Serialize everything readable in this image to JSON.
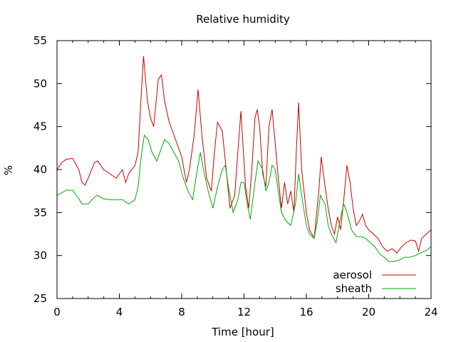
{
  "chart_data": {
    "type": "line",
    "title": "Relative humidity",
    "xlabel": "Time [hour]",
    "ylabel": "%",
    "xlim": [
      0,
      24
    ],
    "ylim": [
      25,
      55
    ],
    "xticks": [
      0,
      4,
      8,
      12,
      16,
      20,
      24
    ],
    "yticks": [
      25,
      30,
      35,
      40,
      45,
      50,
      55
    ],
    "grid": false,
    "legend": "bottom-right",
    "series": [
      {
        "name": "aerosol",
        "color": "#cc0000",
        "x": [
          0.0,
          0.3,
          0.6,
          1.0,
          1.4,
          1.6,
          1.8,
          2.0,
          2.4,
          2.6,
          3.0,
          3.4,
          3.8,
          4.2,
          4.4,
          4.6,
          5.0,
          5.2,
          5.4,
          5.55,
          5.8,
          6.0,
          6.2,
          6.5,
          6.7,
          6.9,
          7.2,
          7.5,
          7.8,
          8.0,
          8.3,
          8.5,
          8.8,
          9.05,
          9.3,
          9.6,
          9.9,
          10.1,
          10.3,
          10.6,
          10.8,
          11.1,
          11.4,
          11.6,
          11.8,
          12.1,
          12.3,
          12.5,
          12.7,
          12.85,
          13.0,
          13.2,
          13.4,
          13.6,
          13.8,
          14.0,
          14.2,
          14.4,
          14.6,
          14.8,
          15.0,
          15.2,
          15.35,
          15.5,
          15.7,
          16.0,
          16.2,
          16.5,
          16.8,
          16.95,
          17.2,
          17.4,
          17.6,
          17.8,
          18.0,
          18.2,
          18.4,
          18.6,
          18.8,
          19.0,
          19.2,
          19.4,
          19.6,
          19.8,
          20.0,
          20.3,
          20.6,
          20.9,
          21.2,
          21.5,
          21.8,
          22.1,
          22.4,
          22.7,
          23.0,
          23.2,
          23.4,
          23.7,
          24.0
        ],
        "y": [
          40.0,
          40.8,
          41.2,
          41.3,
          40.0,
          38.5,
          38.2,
          39.0,
          40.8,
          41.0,
          40.0,
          39.5,
          39.0,
          40.0,
          38.5,
          39.5,
          40.5,
          42.0,
          48.5,
          53.2,
          48.0,
          46.0,
          45.0,
          50.5,
          51.0,
          48.0,
          45.5,
          44.0,
          42.5,
          41.5,
          38.5,
          40.0,
          44.0,
          49.3,
          44.0,
          39.0,
          37.5,
          42.0,
          45.5,
          44.5,
          41.0,
          35.5,
          37.0,
          42.0,
          46.8,
          38.0,
          35.5,
          40.0,
          46.0,
          47.0,
          45.0,
          39.5,
          38.0,
          45.0,
          47.0,
          43.0,
          39.0,
          35.5,
          38.5,
          36.0,
          37.5,
          35.0,
          42.0,
          47.8,
          40.0,
          35.0,
          33.0,
          32.0,
          37.5,
          41.5,
          38.0,
          35.5,
          33.5,
          32.5,
          34.5,
          33.0,
          36.5,
          40.5,
          38.5,
          35.5,
          33.5,
          34.0,
          34.8,
          33.5,
          33.0,
          32.5,
          32.0,
          31.0,
          30.5,
          30.8,
          30.3,
          31.0,
          31.5,
          31.8,
          31.7,
          30.5,
          32.0,
          32.5,
          33.0
        ]
      },
      {
        "name": "sheath",
        "color": "#00aa00",
        "x": [
          0.0,
          0.3,
          0.6,
          1.0,
          1.4,
          1.6,
          2.0,
          2.4,
          2.6,
          3.0,
          3.4,
          3.8,
          4.2,
          4.6,
          5.0,
          5.2,
          5.4,
          5.6,
          5.85,
          6.1,
          6.4,
          6.6,
          6.9,
          7.2,
          7.5,
          7.8,
          8.1,
          8.4,
          8.7,
          9.0,
          9.2,
          9.4,
          9.7,
          10.0,
          10.3,
          10.6,
          10.8,
          11.0,
          11.3,
          11.6,
          11.8,
          12.0,
          12.2,
          12.4,
          12.7,
          12.9,
          13.2,
          13.4,
          13.6,
          13.8,
          14.0,
          14.2,
          14.4,
          14.7,
          15.0,
          15.3,
          15.5,
          15.7,
          16.0,
          16.2,
          16.5,
          16.7,
          16.9,
          17.2,
          17.4,
          17.6,
          17.9,
          18.2,
          18.4,
          18.6,
          18.9,
          19.2,
          19.5,
          19.8,
          20.1,
          20.4,
          20.7,
          21.0,
          21.3,
          21.6,
          22.0,
          22.3,
          22.6,
          23.0,
          23.3,
          23.6,
          24.0
        ],
        "y": [
          37.0,
          37.3,
          37.6,
          37.6,
          36.6,
          36.0,
          36.0,
          36.8,
          37.0,
          36.6,
          36.5,
          36.5,
          36.5,
          36.0,
          36.5,
          38.0,
          41.5,
          44.0,
          43.5,
          42.0,
          41.0,
          42.0,
          43.5,
          43.0,
          42.0,
          41.0,
          39.0,
          37.5,
          36.5,
          40.0,
          42.0,
          40.0,
          37.5,
          35.5,
          38.0,
          40.0,
          40.5,
          38.0,
          35.0,
          36.5,
          38.5,
          38.5,
          36.0,
          34.2,
          38.5,
          41.0,
          40.0,
          37.5,
          38.5,
          40.5,
          40.0,
          37.5,
          35.0,
          34.0,
          33.5,
          36.0,
          39.5,
          37.0,
          33.5,
          32.5,
          32.0,
          34.0,
          37.0,
          36.0,
          33.5,
          32.5,
          31.5,
          34.5,
          36.0,
          35.0,
          33.0,
          32.2,
          32.2,
          32.0,
          31.5,
          31.0,
          30.2,
          29.8,
          29.3,
          29.3,
          29.5,
          29.8,
          29.8,
          30.0,
          30.3,
          30.5,
          31.0
        ]
      }
    ]
  }
}
